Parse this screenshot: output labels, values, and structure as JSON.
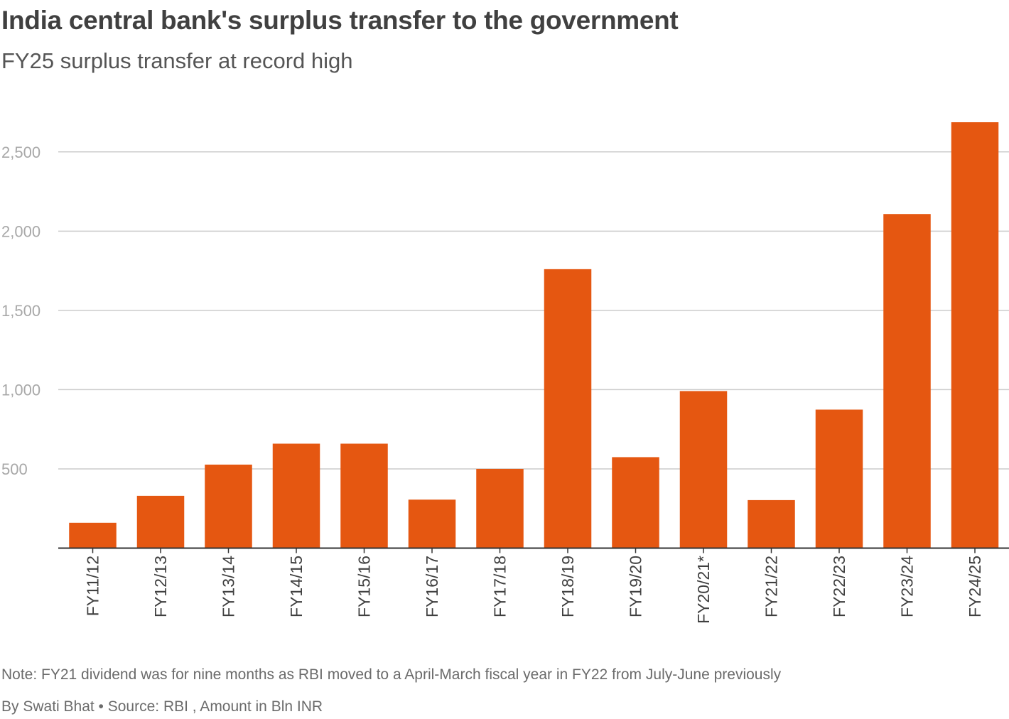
{
  "header": {
    "title": "India central bank's surplus transfer to the government",
    "subtitle": "FY25 surplus transfer at record high"
  },
  "footer": {
    "note": "Note: FY21 dividend was for nine months as RBI moved to a April-March fiscal year in FY22 from July-June previously",
    "credit": "By Swati Bhat • Source: RBI , Amount in Bln INR"
  },
  "chart_data": {
    "type": "bar",
    "title": "India central bank's surplus transfer to the government",
    "subtitle": "FY25 surplus transfer at record high",
    "xlabel": "",
    "ylabel": "Amount in Bln INR",
    "categories": [
      "FY11/12",
      "FY12/13",
      "FY13/14",
      "FY14/15",
      "FY15/16",
      "FY16/17",
      "FY17/18",
      "FY18/19",
      "FY19/20",
      "FY20/21*",
      "FY21/22",
      "FY22/23",
      "FY23/24",
      "FY24/25"
    ],
    "values": [
      160,
      330,
      527,
      659,
      659,
      306,
      500,
      1760,
      574,
      991,
      303,
      874,
      2108,
      2687
    ],
    "ylim": [
      0,
      2750
    ],
    "yticks": [
      500,
      1000,
      1500,
      2000,
      2500
    ],
    "ytick_labels": [
      "500",
      "1,000",
      "1,500",
      "2,000",
      "2,500"
    ],
    "grid": true,
    "bar_color": "#e55711",
    "grid_color": "#cccccc",
    "axis_color": "#333333"
  }
}
